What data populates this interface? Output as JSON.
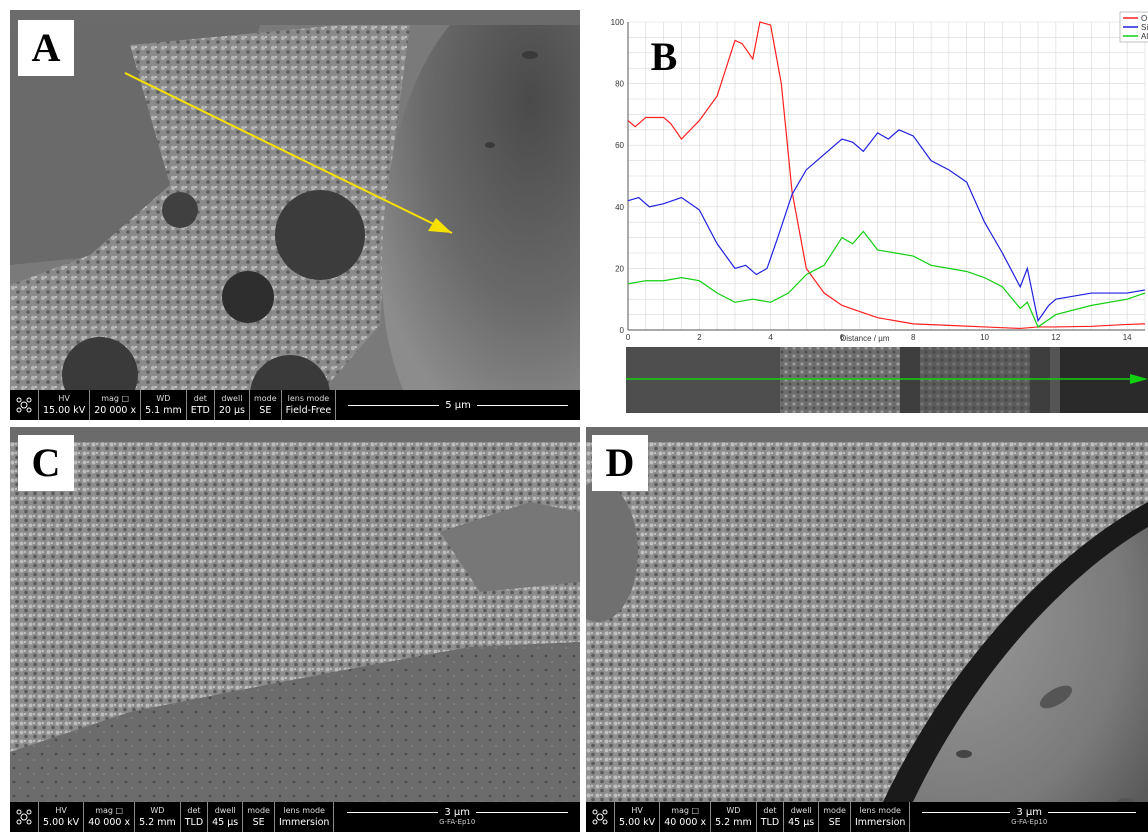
{
  "panels": {
    "a": {
      "letter": "A",
      "info": {
        "hv_h": "HV",
        "hv": "15.00 kV",
        "mag_h": "mag",
        "mag": "20 000 x",
        "wd_h": "WD",
        "wd": "5.1 mm",
        "det_h": "det",
        "det": "ETD",
        "dwell_h": "dwell",
        "dwell": "20 µs",
        "mode_h": "mode",
        "mode": "SE",
        "lens_h": "lens mode",
        "lens": "Field-Free",
        "scale": "5 µm",
        "sub": ""
      }
    },
    "b": {
      "letter": "B"
    },
    "c": {
      "letter": "C",
      "info": {
        "hv_h": "HV",
        "hv": "5.00 kV",
        "mag_h": "mag",
        "mag": "40 000 x",
        "wd_h": "WD",
        "wd": "5.2 mm",
        "det_h": "det",
        "det": "TLD",
        "dwell_h": "dwell",
        "dwell": "45 µs",
        "mode_h": "mode",
        "mode": "SE",
        "lens_h": "lens mode",
        "lens": "Immersion",
        "scale": "3 µm",
        "sub": "G-FA-Ep10"
      }
    },
    "d": {
      "letter": "D",
      "info": {
        "hv_h": "HV",
        "hv": "5.00 kV",
        "mag_h": "mag",
        "mag": "40 000 x",
        "wd_h": "WD",
        "wd": "5.2 mm",
        "det_h": "det",
        "det": "TLD",
        "dwell_h": "dwell",
        "dwell": "45 µs",
        "mode_h": "mode",
        "mode": "SE",
        "lens_h": "lens mode",
        "lens": "Immersion",
        "scale": "3 µm",
        "sub": "G-FA-Ep10"
      }
    }
  },
  "colors": {
    "red": "#ff2020",
    "blue": "#2020e0",
    "green": "#10d010",
    "arrow": "#f5e000"
  },
  "chart_data": {
    "type": "line",
    "xlabel": "Distance / µm",
    "ylabel": "",
    "xlim": [
      0,
      14.5
    ],
    "ylim": [
      0,
      100
    ],
    "xticks": [
      "0",
      "2",
      "4",
      "6",
      "8",
      "10",
      "12",
      "14"
    ],
    "yticks": [
      "0",
      "20",
      "40",
      "60",
      "80",
      "100"
    ],
    "legend_position": "top-right",
    "series": [
      {
        "name": "O",
        "color": "#ff2020",
        "x": [
          0,
          0.2,
          0.5,
          1,
          1.2,
          1.5,
          2,
          2.5,
          3,
          3.2,
          3.5,
          3.7,
          4,
          4.3,
          4.6,
          5,
          5.5,
          6,
          6.5,
          7,
          7.5,
          8,
          9,
          10,
          11,
          11.5,
          12,
          13,
          14,
          14.5
        ],
        "y": [
          68,
          66,
          69,
          69,
          67,
          62,
          68,
          76,
          94,
          93,
          88,
          100,
          99,
          80,
          45,
          20,
          12,
          8,
          6,
          4,
          3,
          2,
          1.5,
          1,
          0.5,
          1,
          1,
          1.2,
          1.8,
          2
        ]
      },
      {
        "name": "Si",
        "color": "#2020e0",
        "x": [
          0,
          0.3,
          0.6,
          1,
          1.5,
          2,
          2.5,
          3,
          3.3,
          3.6,
          3.9,
          4.2,
          4.6,
          5,
          5.5,
          6,
          6.3,
          6.6,
          7,
          7.3,
          7.6,
          8,
          8.5,
          9,
          9.5,
          10,
          10.5,
          11,
          11.2,
          11.5,
          11.8,
          12,
          13,
          14,
          14.5
        ],
        "y": [
          42,
          43,
          40,
          41,
          43,
          39,
          28,
          20,
          21,
          18,
          20,
          30,
          44,
          52,
          57,
          62,
          61,
          58,
          64,
          62,
          65,
          63,
          55,
          52,
          48,
          35,
          25,
          14,
          20,
          3,
          8,
          10,
          12,
          12,
          13
        ]
      },
      {
        "name": "Al",
        "color": "#10d010",
        "x": [
          0,
          0.5,
          1,
          1.5,
          2,
          2.5,
          3,
          3.5,
          4,
          4.5,
          5,
          5.5,
          6,
          6.3,
          6.6,
          7,
          7.5,
          8,
          8.5,
          9,
          9.5,
          10,
          10.5,
          11,
          11.2,
          11.5,
          12,
          13,
          14,
          14.5
        ],
        "y": [
          15,
          16,
          16,
          17,
          16,
          12,
          9,
          10,
          9,
          12,
          18,
          21,
          30,
          28,
          32,
          26,
          25,
          24,
          21,
          20,
          19,
          17,
          14,
          7,
          9,
          1,
          5,
          8,
          10,
          12
        ]
      }
    ]
  }
}
